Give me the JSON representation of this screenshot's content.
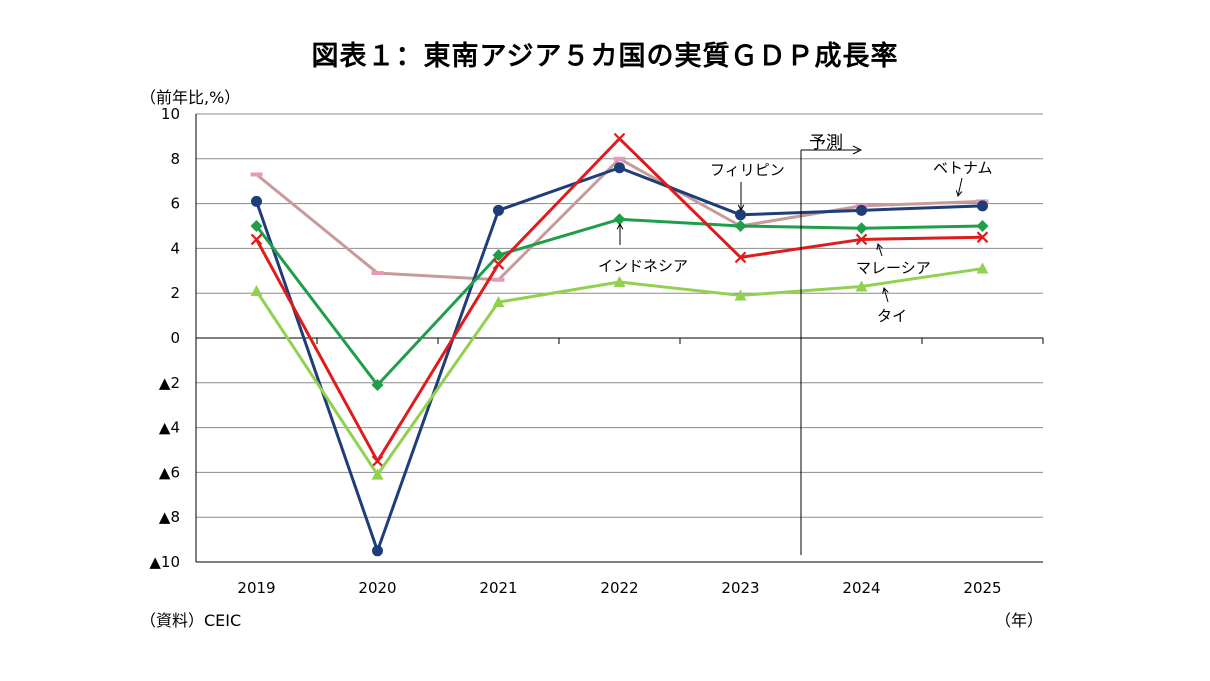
{
  "chart_data": {
    "type": "line",
    "title": "図表１：東南アジア５カ国の実質ＧＤＰ成長率",
    "ylabel": "（前年比,%）",
    "xlabel": "（年）",
    "source": "（資料）CEIC",
    "forecast_label": "予測",
    "forecast_start_after": "2023",
    "categories": [
      "2019",
      "2020",
      "2021",
      "2022",
      "2023",
      "2024",
      "2025"
    ],
    "ylim": [
      -10,
      10
    ],
    "yticks": [
      {
        "value": 10,
        "label": "10"
      },
      {
        "value": 8,
        "label": "8"
      },
      {
        "value": 6,
        "label": "6"
      },
      {
        "value": 4,
        "label": "4"
      },
      {
        "value": 2,
        "label": "2"
      },
      {
        "value": 0,
        "label": "0"
      },
      {
        "value": -2,
        "label": "▲2"
      },
      {
        "value": -4,
        "label": "▲4"
      },
      {
        "value": -6,
        "label": "▲6"
      },
      {
        "value": -8,
        "label": "▲8"
      },
      {
        "value": -10,
        "label": "▲10"
      }
    ],
    "grid": true,
    "legend": "none",
    "series": [
      {
        "name": "ベトナム",
        "color": "#c89a9a",
        "marker": "dash-pink",
        "values": [
          7.3,
          2.9,
          2.6,
          8.0,
          5.0,
          5.9,
          6.1
        ]
      },
      {
        "name": "フィリピン",
        "color": "#1f3d78",
        "marker": "circle",
        "values": [
          6.1,
          -9.5,
          5.7,
          7.6,
          5.5,
          5.7,
          5.9
        ]
      },
      {
        "name": "インドネシア",
        "color": "#1f9e4a",
        "marker": "diamond",
        "values": [
          5.0,
          -2.1,
          3.7,
          5.3,
          5.0,
          4.9,
          5.0
        ]
      },
      {
        "name": "マレーシア",
        "color": "#e01b1b",
        "marker": "x",
        "values": [
          4.4,
          -5.5,
          3.3,
          8.9,
          3.6,
          4.4,
          4.5
        ]
      },
      {
        "name": "タイ",
        "color": "#92d050",
        "marker": "triangle",
        "values": [
          2.1,
          -6.1,
          1.6,
          2.5,
          1.9,
          2.3,
          3.1
        ]
      }
    ]
  }
}
